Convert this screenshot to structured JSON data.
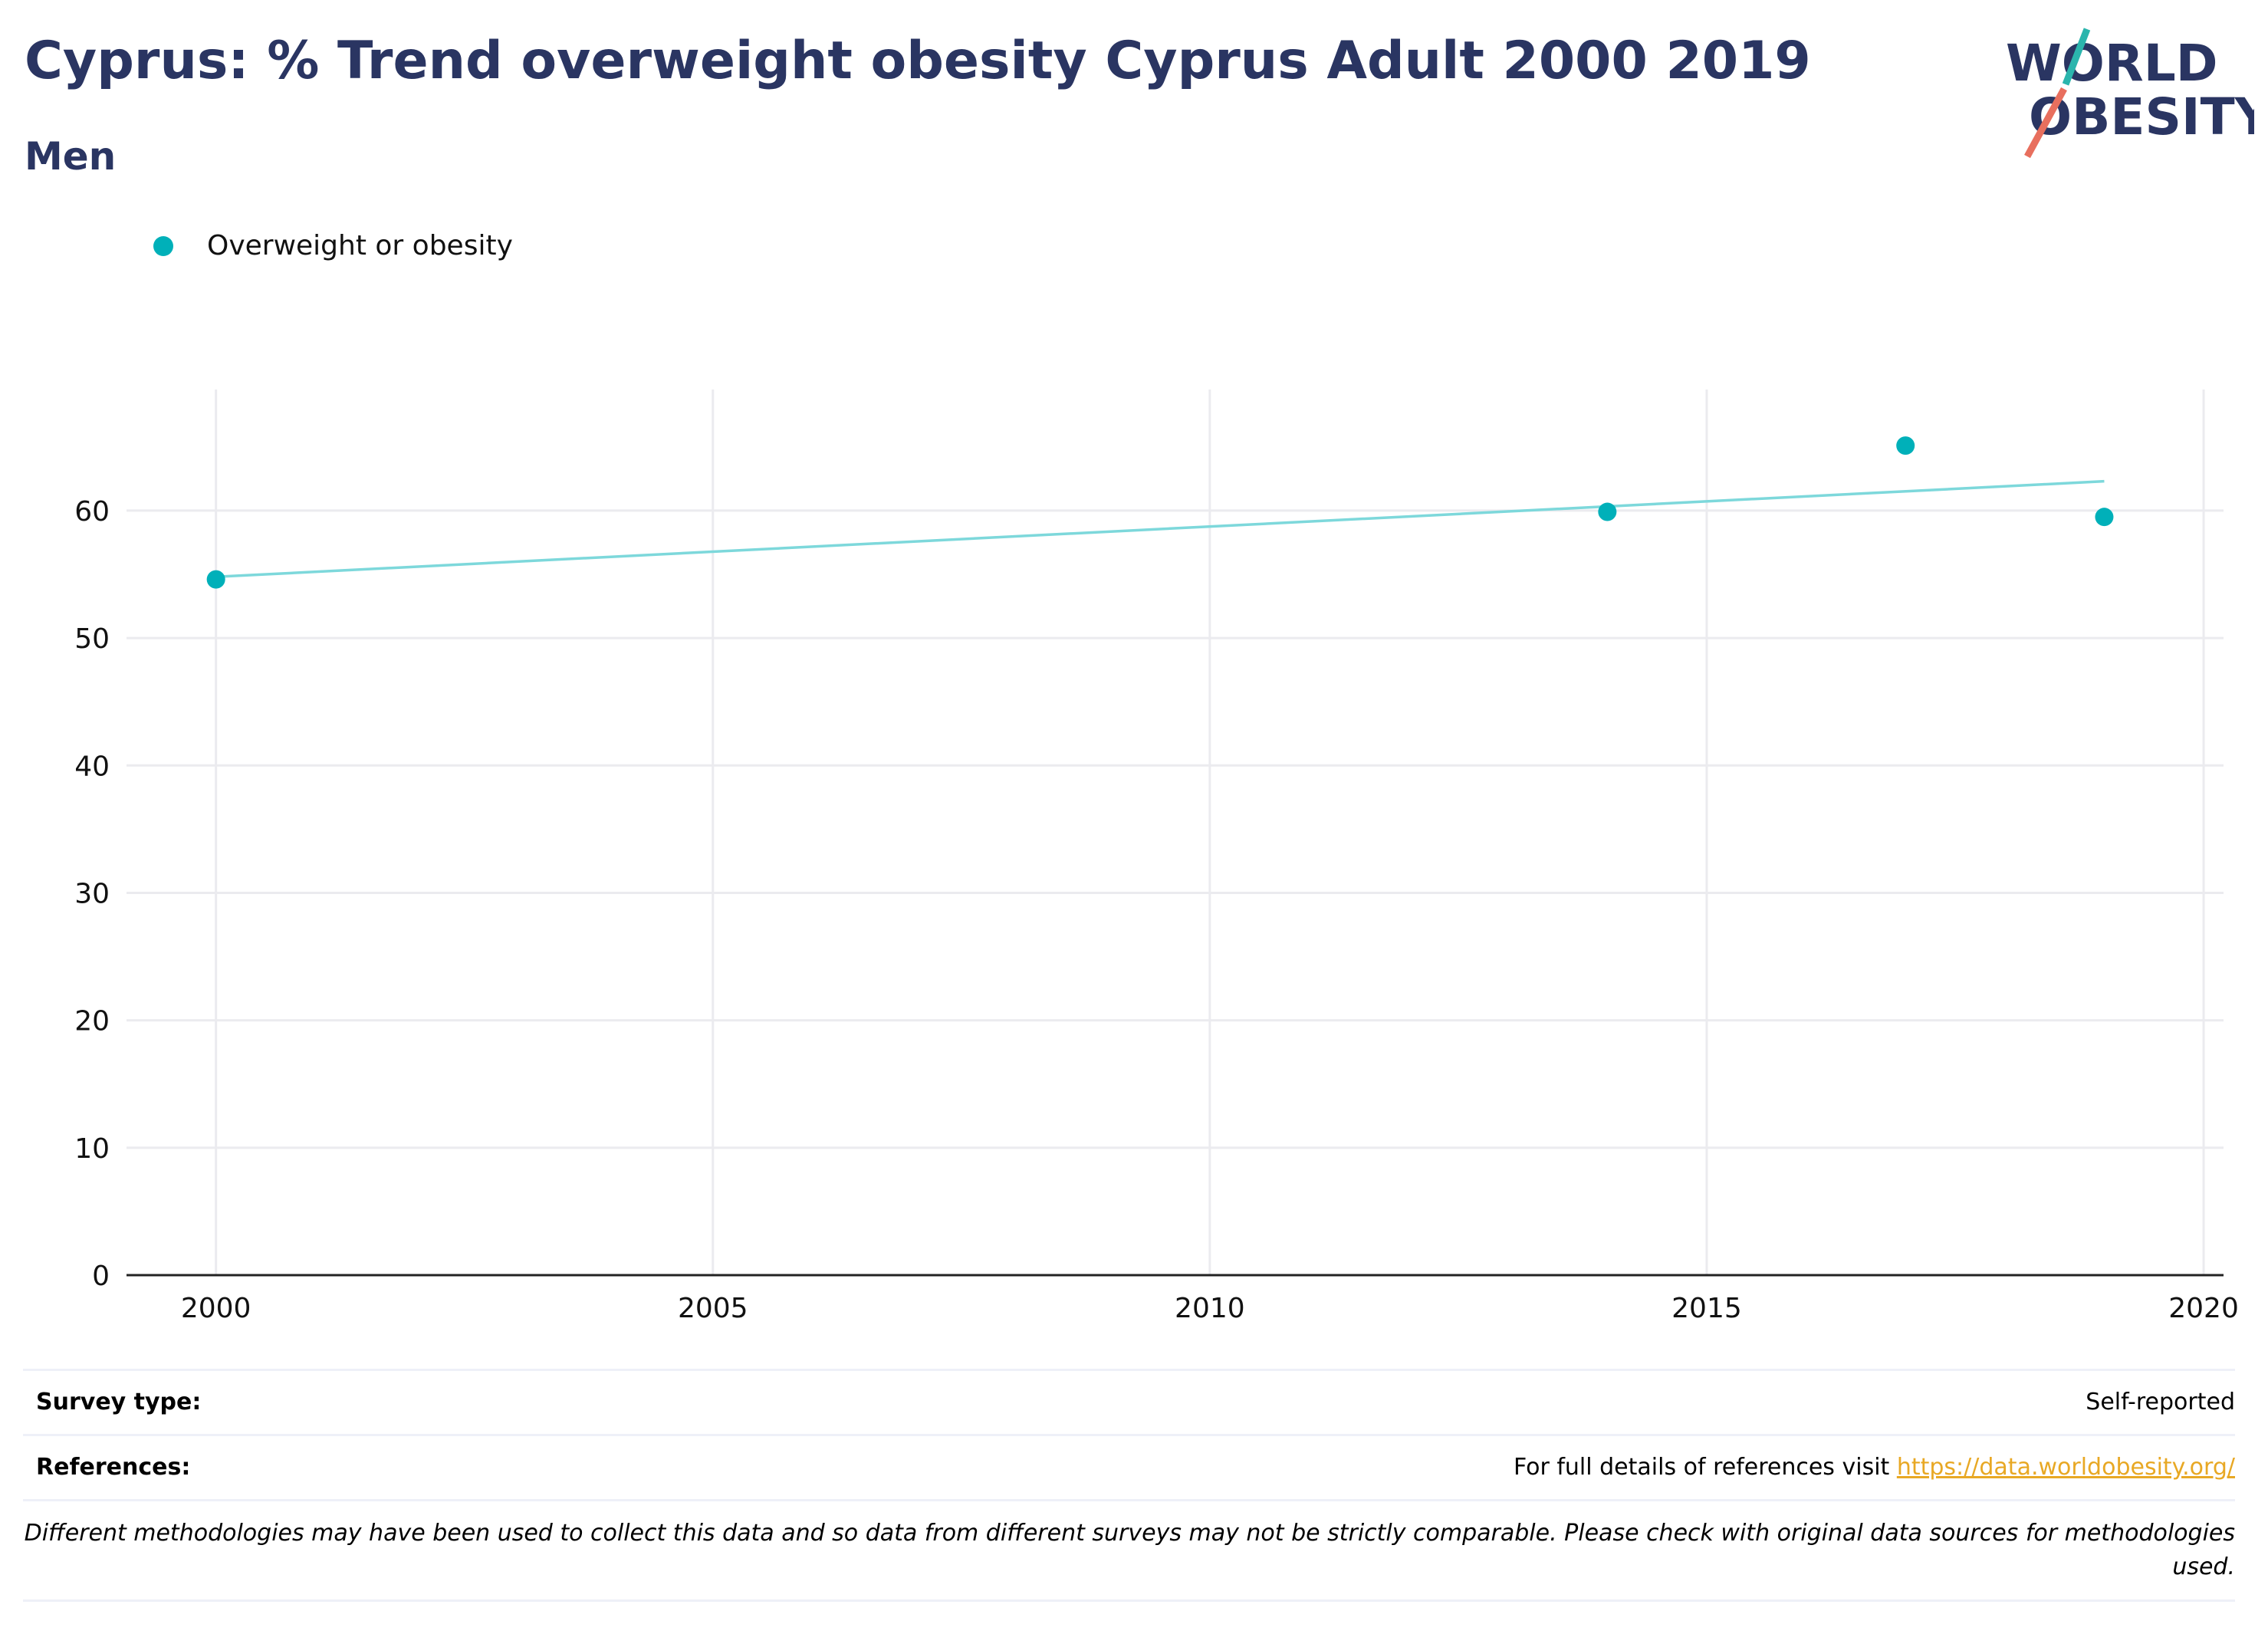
{
  "header": {
    "title": "Cyprus: % Trend overweight obesity Cyprus Adult 2000 2019",
    "subtitle": "Men"
  },
  "logo": {
    "line1": "WORLD",
    "line2": "OBESITY",
    "text_color": "#2a3562",
    "slash_top_color": "#2bb5ad",
    "slash_bottom_color": "#e86f5e"
  },
  "legend": {
    "label": "Overweight or obesity",
    "color": "#00b0b9"
  },
  "chart_data": {
    "type": "scatter",
    "x_ticks": [
      2000,
      2005,
      2010,
      2015,
      2020
    ],
    "y_ticks": [
      0,
      10,
      20,
      30,
      40,
      50,
      60
    ],
    "xlim": [
      1999.1,
      2020.2
    ],
    "ylim": [
      0,
      69.5
    ],
    "grid": true,
    "legend_position": "top-left",
    "series": [
      {
        "name": "Overweight or obesity",
        "color": "#00b0b9",
        "points": [
          {
            "x": 2000,
            "y": 54.6
          },
          {
            "x": 2014,
            "y": 59.9
          },
          {
            "x": 2017,
            "y": 65.1
          },
          {
            "x": 2019,
            "y": 59.5
          }
        ]
      }
    ],
    "trend_line": {
      "color": "#7dd8db",
      "x": [
        2000,
        2019
      ],
      "y": [
        54.8,
        62.3
      ]
    }
  },
  "info": {
    "survey_type_label": "Survey type:",
    "survey_type_value": "Self-reported",
    "references_label": "References:",
    "references_text": "For full details of references visit ",
    "references_link": "https://data.worldobesity.org/",
    "disclaimer": "Different methodologies may have been used to collect this data and so data from different surveys may not be strictly comparable. Please check with original data sources for methodologies used."
  }
}
